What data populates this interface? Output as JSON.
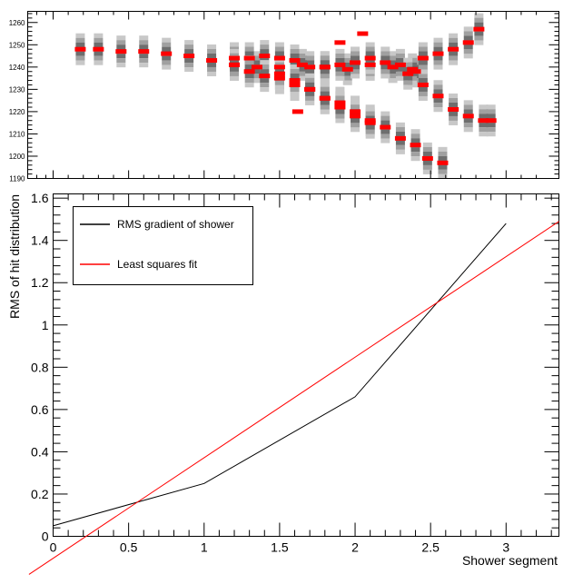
{
  "chart_data": [
    {
      "type": "heatmap",
      "xlim": [
        0,
        3.35
      ],
      "ylim": [
        1190,
        1265
      ],
      "y_ticks": [
        1190,
        1200,
        1210,
        1220,
        1230,
        1240,
        1250,
        1260
      ],
      "y_tick_labels": [
        "1190",
        "1200",
        "1210",
        "1220",
        "1230",
        "1240",
        "1250",
        "1260"
      ],
      "hit_color": "#000000",
      "fit_color": "#ff0000",
      "branches": [
        {
          "points": [
            [
              0.18,
              1248
            ],
            [
              0.3,
              1248
            ],
            [
              0.45,
              1247
            ],
            [
              0.6,
              1247
            ],
            [
              0.75,
              1246
            ],
            [
              0.9,
              1245
            ],
            [
              1.05,
              1243
            ],
            [
              1.2,
              1241
            ],
            [
              1.35,
              1240
            ],
            [
              1.5,
              1240
            ],
            [
              1.65,
              1241
            ],
            [
              1.8,
              1240
            ],
            [
              1.95,
              1239
            ],
            [
              2.1,
              1241
            ],
            [
              2.25,
              1240
            ],
            [
              2.4,
              1238
            ]
          ]
        },
        {
          "points": [
            [
              1.2,
              1244
            ],
            [
              1.3,
              1244
            ],
            [
              1.4,
              1245
            ],
            [
              1.5,
              1244
            ],
            [
              1.6,
              1243
            ],
            [
              1.7,
              1240
            ],
            [
              1.8,
              1240
            ],
            [
              1.9,
              1241
            ],
            [
              2.0,
              1242
            ],
            [
              2.1,
              1244
            ],
            [
              2.2,
              1242
            ],
            [
              2.3,
              1241
            ],
            [
              2.38,
              1239
            ]
          ]
        },
        {
          "points": [
            [
              1.2,
              1241
            ],
            [
              1.3,
              1238
            ],
            [
              1.4,
              1236
            ],
            [
              1.5,
              1235
            ],
            [
              1.6,
              1232
            ],
            [
              1.7,
              1230
            ],
            [
              1.8,
              1226
            ],
            [
              1.9,
              1224
            ],
            [
              2.0,
              1220
            ],
            [
              2.1,
              1216
            ],
            [
              2.2,
              1213
            ],
            [
              2.3,
              1208
            ],
            [
              2.4,
              1205
            ],
            [
              2.48,
              1199
            ],
            [
              2.58,
              1197
            ]
          ]
        },
        {
          "points": [
            [
              1.5,
              1237
            ],
            [
              1.6,
              1234
            ],
            [
              1.7,
              1230
            ],
            [
              1.8,
              1226
            ],
            [
              1.9,
              1222
            ],
            [
              2.0,
              1218
            ],
            [
              2.1,
              1215
            ]
          ]
        },
        {
          "points": [
            [
              2.35,
              1237
            ],
            [
              2.45,
              1232
            ],
            [
              2.55,
              1227
            ],
            [
              2.65,
              1221
            ],
            [
              2.75,
              1218
            ],
            [
              2.85,
              1216
            ],
            [
              2.9,
              1216
            ]
          ]
        },
        {
          "points": [
            [
              2.45,
              1244
            ],
            [
              2.55,
              1246
            ],
            [
              2.65,
              1248
            ],
            [
              2.75,
              1251
            ],
            [
              2.82,
              1257
            ]
          ]
        }
      ],
      "isolated_hits": [
        [
          1.62,
          1220
        ],
        [
          1.9,
          1251
        ],
        [
          2.05,
          1255
        ]
      ]
    },
    {
      "type": "line",
      "xlabel": "Shower segment",
      "ylabel": "RMS of hit distribution",
      "xlim": [
        0,
        3.35
      ],
      "ylim": [
        0,
        1.62
      ],
      "x_ticks": [
        0,
        0.5,
        1,
        1.5,
        2,
        2.5,
        3
      ],
      "x_tick_labels": [
        "0",
        "0.5",
        "1",
        "1.5",
        "2",
        "2.5",
        "3"
      ],
      "y_ticks": [
        0,
        0.2,
        0.4,
        0.6,
        0.8,
        1,
        1.2,
        1.4,
        1.6
      ],
      "y_tick_labels": [
        "0",
        "0.2",
        "0.4",
        "0.6",
        "0.8",
        "1",
        "1.2",
        "1.4",
        "1.6"
      ],
      "legend_placement": "top-left",
      "series": [
        {
          "name": "RMS gradient of shower",
          "color": "#000000",
          "x": [
            0,
            1,
            2,
            3
          ],
          "y": [
            0.05,
            0.25,
            0.66,
            1.48
          ]
        },
        {
          "name": "Least squares fit",
          "color": "#ff0000",
          "x": [
            -0.16,
            3.35
          ],
          "y": [
            -0.18,
            1.49
          ]
        }
      ]
    }
  ]
}
